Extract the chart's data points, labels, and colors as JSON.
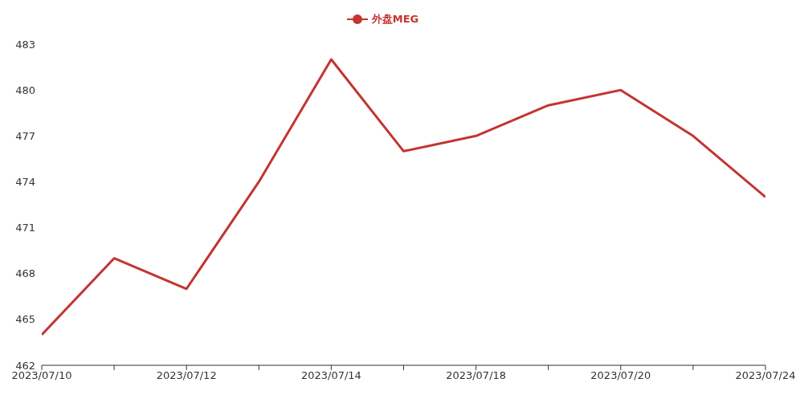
{
  "chart_data": {
    "type": "line",
    "categories": [
      "2023/07/10",
      null,
      "2023/07/12",
      null,
      "2023/07/14",
      null,
      "2023/07/18",
      null,
      "2023/07/20",
      null,
      "2023/07/24"
    ],
    "series": [
      {
        "name": "外盘MEG",
        "color": "#c23531",
        "values": [
          464,
          469,
          467,
          474,
          482,
          476,
          477,
          479,
          480,
          477,
          473
        ]
      }
    ],
    "ylim": [
      462,
      483
    ],
    "yticks": [
      462,
      465,
      468,
      471,
      474,
      477,
      480,
      483
    ],
    "grid": false,
    "legend": "top",
    "marker": "none",
    "line_style": "solid"
  }
}
